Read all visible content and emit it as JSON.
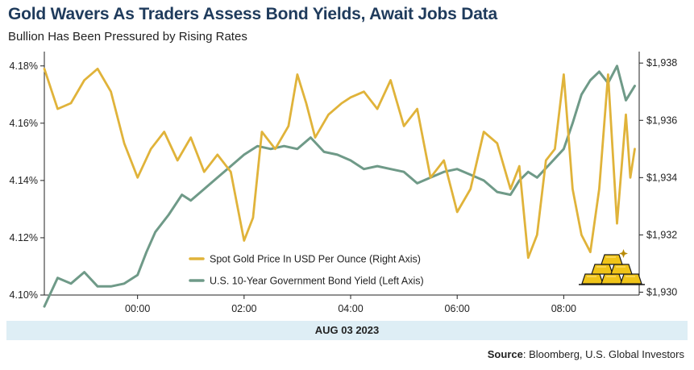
{
  "header": {
    "title": "Gold Wavers As Traders Assess Bond Yields, Await Jobs Data",
    "subtitle": "Bullion Has Been Pressured by Rising Rates"
  },
  "footer": {
    "date_band": "AUG 03 2023",
    "source_label": "Source",
    "source_text": ": Bloomberg, U.S. Global Investors"
  },
  "colors": {
    "gold": "#e0b33a",
    "yield": "#6f9a88",
    "axis": "#222222",
    "title": "#1f3b5c",
    "band": "#deeef5"
  },
  "icon": "gold-bars-icon",
  "chart_data": {
    "type": "line",
    "x_range": [
      "22:15",
      "09:25"
    ],
    "x_ticks": [
      "00:00",
      "02:00",
      "04:00",
      "06:00",
      "08:00"
    ],
    "left_axis": {
      "ylim": [
        4.1,
        4.185
      ],
      "ticks": [
        "4.10%",
        "4.12%",
        "4.14%",
        "4.16%",
        "4.18%"
      ]
    },
    "right_axis": {
      "ylim": [
        1929.9,
        1938.4
      ],
      "ticks": [
        "$1,930",
        "$1,932",
        "$1,934",
        "$1,936",
        "$1,938"
      ]
    },
    "legend": {
      "position": "bottom-center"
    },
    "grid": false,
    "series": [
      {
        "name": "Spot Gold Price In USD Per Ounce (Right Axis)",
        "axis": "right",
        "x": [
          "22:15",
          "22:30",
          "22:45",
          "23:00",
          "23:15",
          "23:30",
          "23:45",
          "00:00",
          "00:15",
          "00:30",
          "00:45",
          "01:00",
          "01:15",
          "01:30",
          "01:45",
          "02:00",
          "02:10",
          "02:20",
          "02:35",
          "02:50",
          "03:00",
          "03:10",
          "03:20",
          "03:35",
          "03:50",
          "04:00",
          "04:15",
          "04:30",
          "04:45",
          "05:00",
          "05:15",
          "05:30",
          "05:45",
          "06:00",
          "06:15",
          "06:30",
          "06:45",
          "07:00",
          "07:10",
          "07:20",
          "07:30",
          "07:40",
          "07:50",
          "08:00",
          "08:10",
          "08:20",
          "08:30",
          "08:40",
          "08:50",
          "09:00",
          "09:10",
          "09:15",
          "09:20"
        ],
        "values": [
          1937.8,
          1936.4,
          1936.6,
          1937.4,
          1937.8,
          1937.0,
          1935.2,
          1934.0,
          1935.0,
          1935.6,
          1934.6,
          1935.4,
          1934.2,
          1934.8,
          1934.2,
          1931.8,
          1932.6,
          1935.6,
          1935.0,
          1935.8,
          1937.6,
          1936.6,
          1935.4,
          1936.2,
          1936.6,
          1936.8,
          1937.0,
          1936.4,
          1937.4,
          1935.8,
          1936.4,
          1934.0,
          1934.6,
          1932.8,
          1933.6,
          1935.6,
          1935.2,
          1933.6,
          1934.4,
          1931.2,
          1932.0,
          1934.6,
          1935.0,
          1937.6,
          1933.6,
          1932.0,
          1931.4,
          1933.6,
          1937.6,
          1932.4,
          1936.2,
          1934.0,
          1935.0
        ]
      },
      {
        "name": "U.S. 10-Year Government Bond Yield (Left Axis)",
        "axis": "left",
        "x": [
          "22:15",
          "22:30",
          "22:45",
          "23:00",
          "23:15",
          "23:30",
          "23:45",
          "00:00",
          "00:10",
          "00:20",
          "00:35",
          "00:50",
          "01:00",
          "01:15",
          "01:30",
          "01:45",
          "02:00",
          "02:15",
          "02:30",
          "02:45",
          "03:00",
          "03:15",
          "03:30",
          "03:45",
          "04:00",
          "04:15",
          "04:30",
          "04:45",
          "05:00",
          "05:15",
          "05:30",
          "05:45",
          "06:00",
          "06:15",
          "06:30",
          "06:45",
          "07:00",
          "07:10",
          "07:20",
          "07:30",
          "07:45",
          "08:00",
          "08:10",
          "08:20",
          "08:30",
          "08:40",
          "08:50",
          "09:00",
          "09:10",
          "09:20"
        ],
        "values": [
          4.096,
          4.106,
          4.104,
          4.108,
          4.103,
          4.103,
          4.104,
          4.107,
          4.115,
          4.122,
          4.128,
          4.135,
          4.133,
          4.137,
          4.141,
          4.145,
          4.149,
          4.152,
          4.151,
          4.152,
          4.151,
          4.155,
          4.15,
          4.149,
          4.147,
          4.144,
          4.145,
          4.144,
          4.143,
          4.139,
          4.141,
          4.143,
          4.144,
          4.142,
          4.14,
          4.136,
          4.135,
          4.14,
          4.143,
          4.141,
          4.146,
          4.151,
          4.16,
          4.17,
          4.175,
          4.178,
          4.174,
          4.18,
          4.168,
          4.173
        ]
      }
    ]
  }
}
